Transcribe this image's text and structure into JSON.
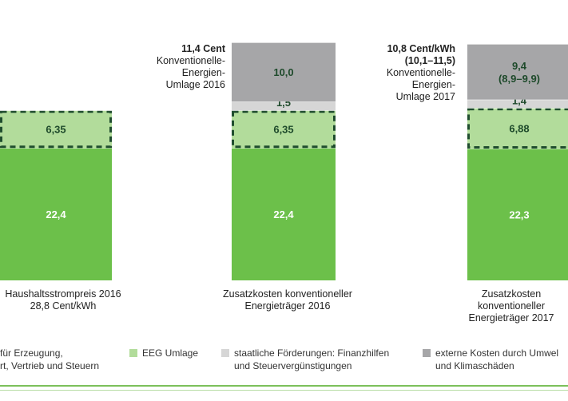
{
  "colors": {
    "base": "#6cc04a",
    "eeg": "#b2dc9b",
    "subsidies": "#d6d6d6",
    "external": "#a6a6a8",
    "dashed_border": "#1f4d2e",
    "eeg_text": "#1e4a2b",
    "external_text": "#1e4a2b",
    "rule_green": "#7cc05a"
  },
  "chart_data": {
    "type": "bar",
    "stacked": true,
    "categories": [
      [
        "Haushaltsstrompreis 2016",
        "28,8 Cent/kWh"
      ],
      [
        "Zusatzkosten konventioneller",
        "Energieträger 2016"
      ],
      [
        "Zusatzkosten",
        "konventioneller",
        "Energieträger 2017"
      ]
    ],
    "series": [
      {
        "name": "für Erzeugung, rt, Vertrieb und Steuern",
        "color_key": "base",
        "values": [
          22.4,
          22.4,
          22.3
        ],
        "labels": [
          "22,4",
          "22,4",
          "22,3"
        ]
      },
      {
        "name": "EEG Umlage",
        "color_key": "eeg",
        "values": [
          6.35,
          6.35,
          6.88
        ],
        "labels": [
          "6,35",
          "6,35",
          "6,88"
        ]
      },
      {
        "name": "staatliche Förderungen: Finanzhilfen und Steuervergünstigungen",
        "color_key": "subsidies",
        "values": [
          0,
          1.5,
          1.4
        ],
        "labels": [
          "",
          "1,5",
          "1,4"
        ]
      },
      {
        "name": "externe Kosten durch Umwelt- und Klimaschäden",
        "color_key": "external",
        "values": [
          0,
          10.0,
          9.4
        ],
        "labels": [
          "",
          "10,0",
          "9,4|(8,9–9,9)"
        ]
      }
    ],
    "annotations": [
      {
        "bar": 1,
        "lines": [
          "11,4 Cent",
          "Konventionelle-",
          "Energien-",
          "Umlage 2016"
        ],
        "bold_lines": 1
      },
      {
        "bar": 2,
        "lines": [
          "10,8 Cent/kWh",
          "(10,1–11,5)",
          "Konventionelle-",
          "Energien-",
          "Umlage 2017"
        ],
        "bold_lines": 2
      }
    ],
    "ylim": [
      0,
      40
    ],
    "grid": false,
    "legend_position": "bottom"
  },
  "legend": [
    {
      "lines": [
        "für Erzeugung,",
        "rt, Vertrieb und Steuern"
      ],
      "color_key": "base"
    },
    {
      "lines": [
        "EEG Umlage"
      ],
      "color_key": "eeg"
    },
    {
      "lines": [
        "staatliche Förderungen: Finanzhilfen",
        "und Steuervergünstigungen"
      ],
      "color_key": "subsidies"
    },
    {
      "lines": [
        "externe Kosten durch Umwel",
        "und Klimaschäden"
      ],
      "color_key": "external"
    }
  ]
}
